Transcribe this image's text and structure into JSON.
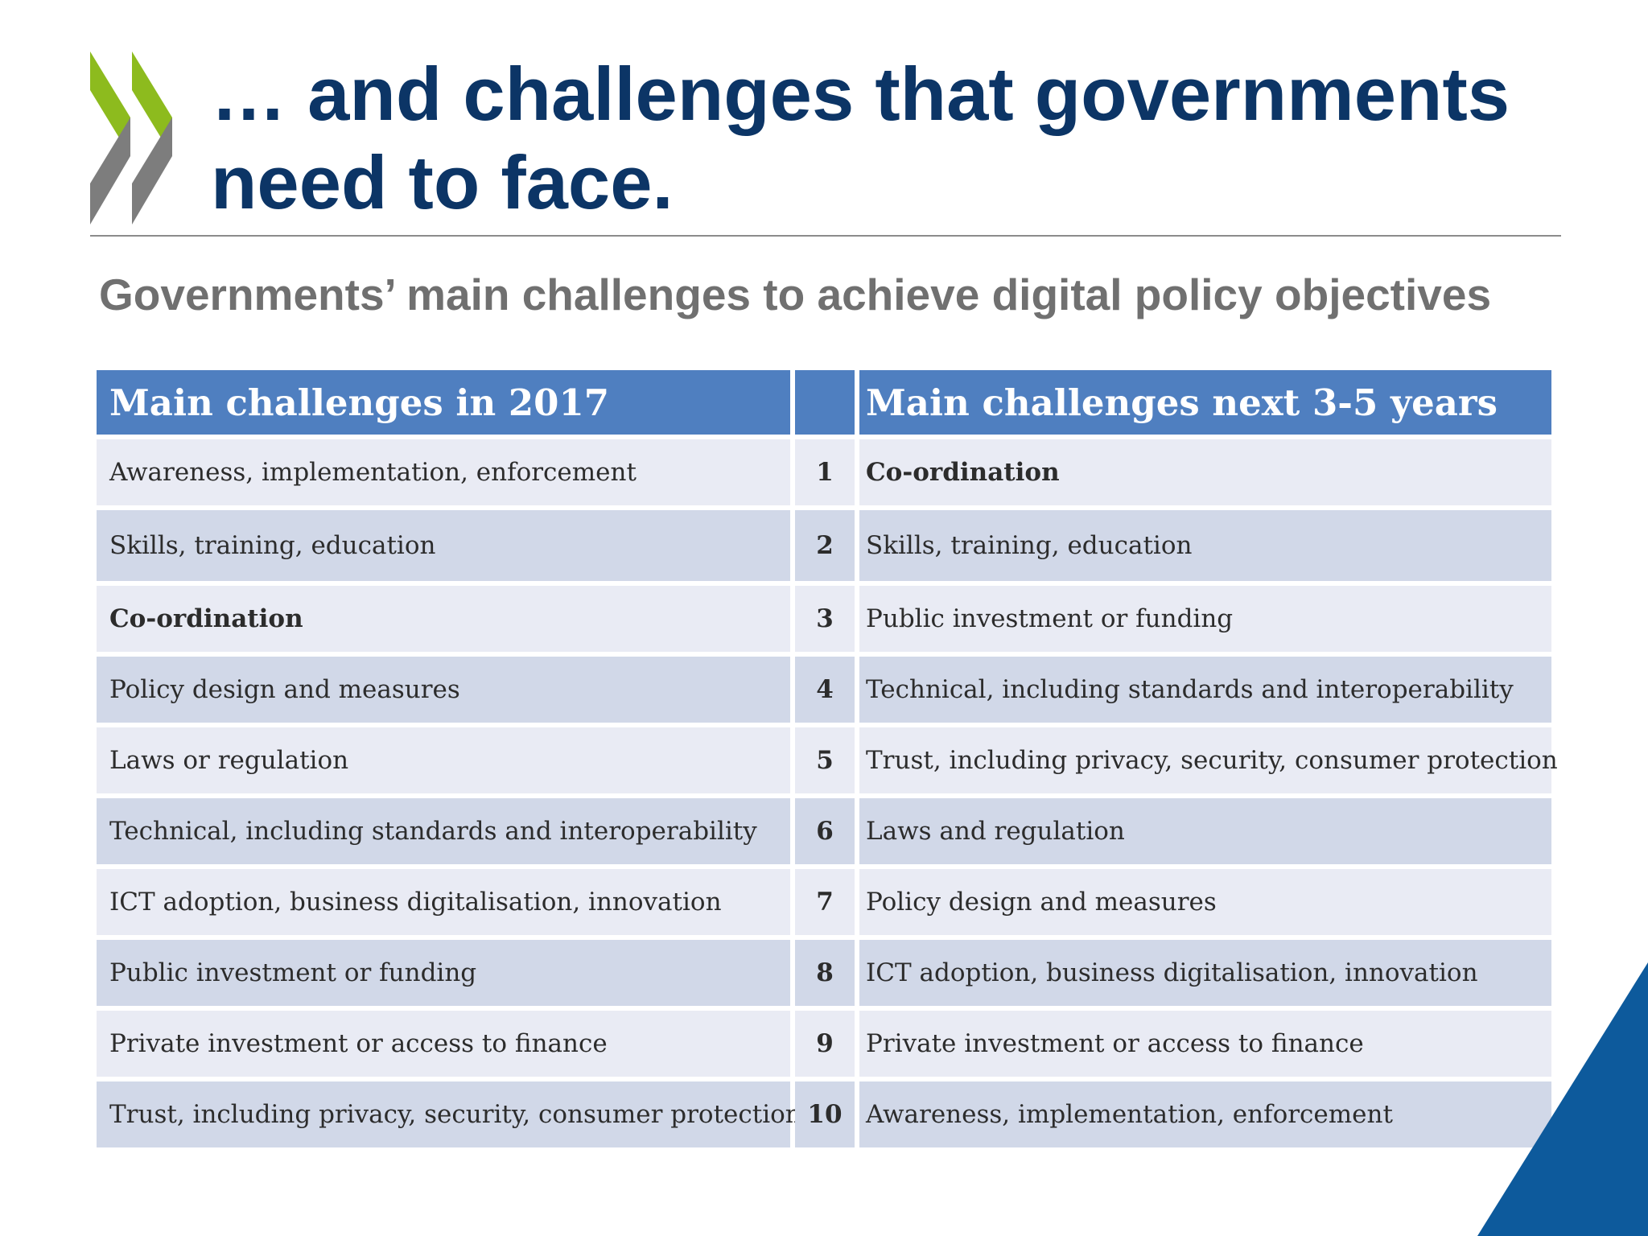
{
  "title": "… and challenges that governments need to face.",
  "subtitle": "Governments’ main challenges to achieve digital policy objectives",
  "colors": {
    "title": "#0c3566",
    "subtitle": "#707070",
    "header_fill": "#4f7fc0",
    "row_dark": "#d1d8e8",
    "row_light": "#e9ebf4",
    "logo_green": "#8dbb1e",
    "logo_grey": "#7d7d7d",
    "corner_blue": "#0d5a9c"
  },
  "icons": {
    "logo": "oecd-chevrons-logo",
    "corner": "blue-triangle-decoration"
  },
  "table": {
    "header": {
      "left": "Main challenges in 2017",
      "rank": "",
      "right": "Main challenges  next 3-5 years"
    },
    "rows": [
      {
        "rank": "1",
        "left": "Awareness, implementation, enforcement",
        "right": "Co-ordination",
        "left_bold": false,
        "right_bold": true
      },
      {
        "rank": "2",
        "left": "Skills, training, education",
        "right": "Skills, training, education",
        "left_bold": false,
        "right_bold": false
      },
      {
        "rank": "3",
        "left": "Co-ordination",
        "right": "Public investment or funding",
        "left_bold": true,
        "right_bold": false
      },
      {
        "rank": "4",
        "left": "Policy design and measures",
        "right": "Technical, including standards and interoperability",
        "left_bold": false,
        "right_bold": false
      },
      {
        "rank": "5",
        "left": "Laws or regulation",
        "right": "Trust, including privacy, security, consumer protection",
        "left_bold": false,
        "right_bold": false
      },
      {
        "rank": "6",
        "left": "Technical, including standards and interoperability",
        "right": "Laws and regulation",
        "left_bold": false,
        "right_bold": false
      },
      {
        "rank": "7",
        "left": "ICT adoption, business digitalisation, innovation",
        "right": "Policy design and measures",
        "left_bold": false,
        "right_bold": false
      },
      {
        "rank": "8",
        "left": "Public investment or funding",
        "right": "ICT adoption, business digitalisation, innovation",
        "left_bold": false,
        "right_bold": false
      },
      {
        "rank": "9",
        "left": "Private investment or access to finance",
        "right": "Private investment or access to finance",
        "left_bold": false,
        "right_bold": false
      },
      {
        "rank": "10",
        "left": "Trust, including privacy, security, consumer protection",
        "right": "Awareness, implementation, enforcement",
        "left_bold": false,
        "right_bold": false
      }
    ]
  }
}
